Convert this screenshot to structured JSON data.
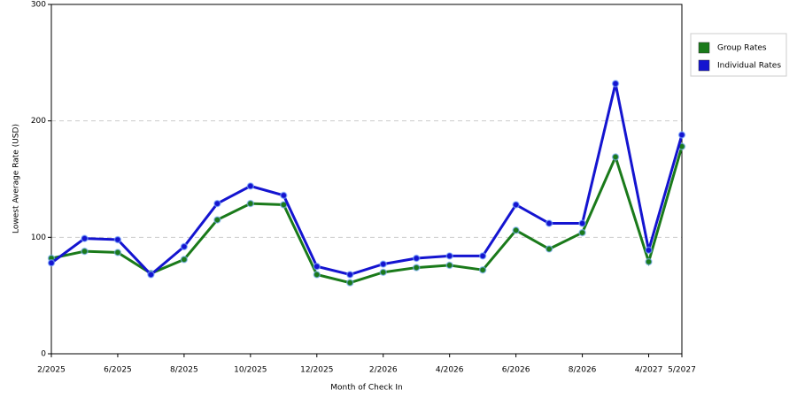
{
  "chart_data": {
    "type": "line",
    "x_label": "Month of Check In",
    "y_label": "Lowest Average Rate (USD)",
    "categories": [
      "2/2025",
      null,
      "6/2025",
      null,
      "8/2025",
      null,
      "10/2025",
      null,
      "12/2025",
      null,
      "2/2026",
      null,
      "4/2026",
      null,
      "6/2026",
      null,
      "8/2026",
      null,
      "4/2027",
      "5/2027"
    ],
    "series": [
      {
        "name": "Group Rates",
        "color": "#1a7a1a",
        "values": [
          82,
          88,
          87,
          69,
          81,
          115,
          129,
          128,
          68,
          61,
          70,
          74,
          76,
          72,
          106,
          90,
          104,
          169,
          79,
          178
        ]
      },
      {
        "name": "Individual Rates",
        "color": "#1414d0",
        "values": [
          78,
          99,
          98,
          68,
          92,
          129,
          144,
          136,
          75,
          68,
          77,
          82,
          84,
          84,
          128,
          112,
          112,
          232,
          89,
          188
        ]
      }
    ],
    "ylim": [
      0,
      300
    ],
    "yticks": [
      0,
      100,
      200,
      300
    ],
    "grid": true,
    "legend": "right"
  }
}
